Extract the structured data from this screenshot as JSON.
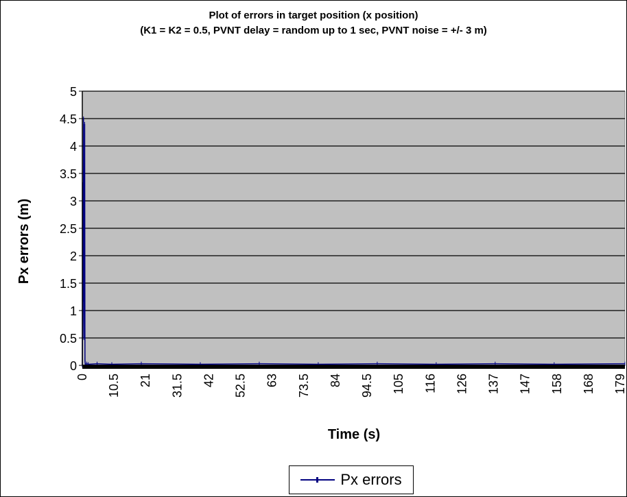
{
  "chart_data": {
    "type": "line",
    "title": "Plot of errors in target position (x position)",
    "subtitle": "(K1 = K2 = 0.5, PVNT delay = random up to 1 sec, PVNT noise = +/- 3 m)",
    "xlabel": "Time (s)",
    "ylabel": "Px errors (m)",
    "ylim": [
      0,
      5
    ],
    "yticks": [
      "0",
      "0.5",
      "1",
      "1.5",
      "2",
      "2.5",
      "3",
      "3.5",
      "4",
      "4.5",
      "5"
    ],
    "xticks": [
      "0",
      "10.5",
      "21",
      "31.5",
      "42",
      "52.5",
      "63",
      "73.5",
      "84",
      "94.5",
      "105",
      "116",
      "126",
      "137",
      "147",
      "158",
      "168",
      "179"
    ],
    "xlim": [
      0,
      184
    ],
    "grid": true,
    "plot_background": "#c0c0c0",
    "legend_position": "bottom",
    "series": [
      {
        "name": "Px errors",
        "color": "#000080",
        "x": [
          0,
          0.1,
          0.2,
          0.3,
          0.4,
          0.5,
          0.6,
          0.7,
          0.8,
          0.9,
          1.0,
          1.5,
          2,
          5,
          10,
          20,
          40,
          60,
          80,
          100,
          120,
          140,
          160,
          184
        ],
        "y": [
          0,
          0.8,
          3.3,
          1.2,
          4.5,
          0.5,
          3.0,
          1.0,
          4.4,
          0.1,
          0.02,
          0.03,
          0.02,
          0.03,
          0.02,
          0.03,
          0.02,
          0.03,
          0.02,
          0.03,
          0.02,
          0.03,
          0.02,
          0.03
        ]
      }
    ]
  }
}
